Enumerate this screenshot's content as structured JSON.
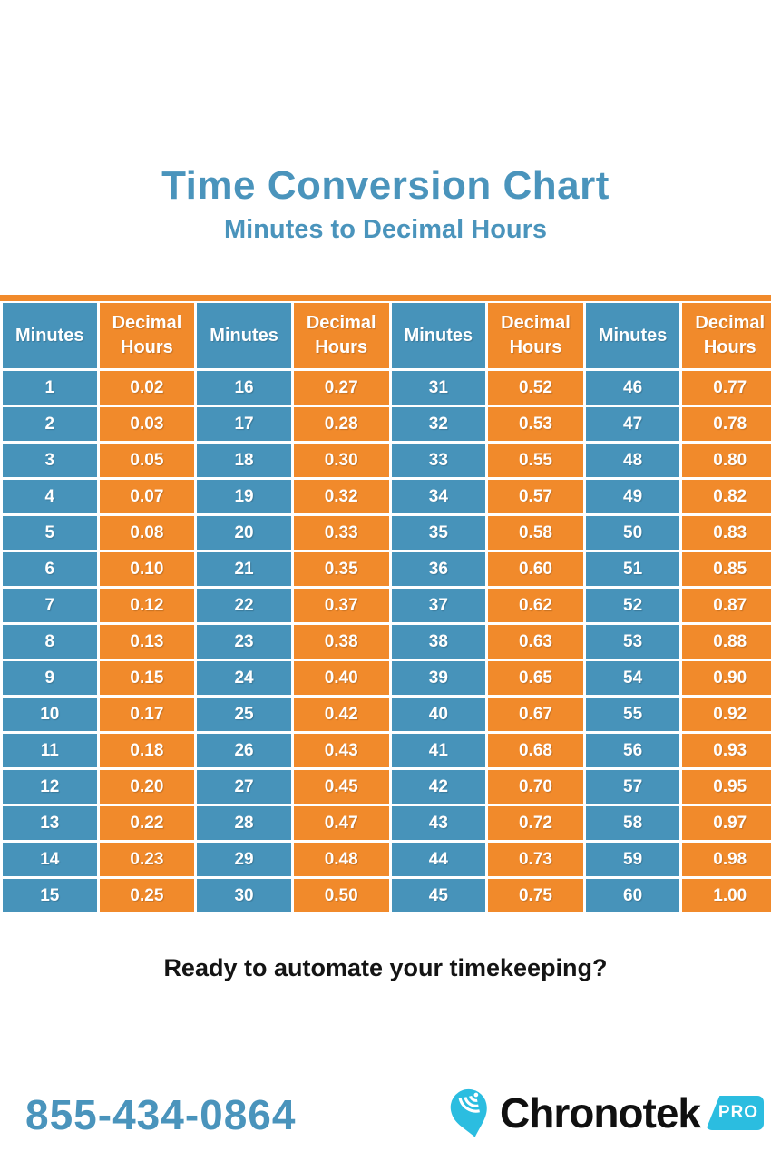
{
  "header": {
    "title": "Time Conversion Chart",
    "subtitle": "Minutes to Decimal Hours"
  },
  "table": {
    "column_headers": [
      "Minutes",
      "Decimal Hours"
    ],
    "rows": [
      [
        "1",
        "0.02",
        "16",
        "0.27",
        "31",
        "0.52",
        "46",
        "0.77"
      ],
      [
        "2",
        "0.03",
        "17",
        "0.28",
        "32",
        "0.53",
        "47",
        "0.78"
      ],
      [
        "3",
        "0.05",
        "18",
        "0.30",
        "33",
        "0.55",
        "48",
        "0.80"
      ],
      [
        "4",
        "0.07",
        "19",
        "0.32",
        "34",
        "0.57",
        "49",
        "0.82"
      ],
      [
        "5",
        "0.08",
        "20",
        "0.33",
        "35",
        "0.58",
        "50",
        "0.83"
      ],
      [
        "6",
        "0.10",
        "21",
        "0.35",
        "36",
        "0.60",
        "51",
        "0.85"
      ],
      [
        "7",
        "0.12",
        "22",
        "0.37",
        "37",
        "0.62",
        "52",
        "0.87"
      ],
      [
        "8",
        "0.13",
        "23",
        "0.38",
        "38",
        "0.63",
        "53",
        "0.88"
      ],
      [
        "9",
        "0.15",
        "24",
        "0.40",
        "39",
        "0.65",
        "54",
        "0.90"
      ],
      [
        "10",
        "0.17",
        "25",
        "0.42",
        "40",
        "0.67",
        "55",
        "0.92"
      ],
      [
        "11",
        "0.18",
        "26",
        "0.43",
        "41",
        "0.68",
        "56",
        "0.93"
      ],
      [
        "12",
        "0.20",
        "27",
        "0.45",
        "42",
        "0.70",
        "57",
        "0.95"
      ],
      [
        "13",
        "0.22",
        "28",
        "0.47",
        "43",
        "0.72",
        "58",
        "0.97"
      ],
      [
        "14",
        "0.23",
        "29",
        "0.48",
        "44",
        "0.73",
        "59",
        "0.98"
      ],
      [
        "15",
        "0.25",
        "30",
        "0.50",
        "45",
        "0.75",
        "60",
        "1.00"
      ]
    ]
  },
  "cta": {
    "text": "Ready to automate your timekeeping?"
  },
  "footer": {
    "phone": "855-434-0864",
    "logo_text": "Chronotek",
    "logo_badge": "PRO"
  },
  "colors": {
    "blue": "#4793BA",
    "orange": "#F18A2B",
    "title_blue": "#4A94BC",
    "logo_cyan": "#2BBDE0",
    "text_black": "#141414"
  },
  "chart_data": {
    "type": "table",
    "title": "Time Conversion Chart",
    "subtitle": "Minutes to Decimal Hours",
    "columns": [
      "Minutes",
      "Decimal Hours",
      "Minutes",
      "Decimal Hours",
      "Minutes",
      "Decimal Hours",
      "Minutes",
      "Decimal Hours"
    ],
    "minutes_to_decimal": {
      "1": "0.02",
      "2": "0.03",
      "3": "0.05",
      "4": "0.07",
      "5": "0.08",
      "6": "0.10",
      "7": "0.12",
      "8": "0.13",
      "9": "0.15",
      "10": "0.17",
      "11": "0.18",
      "12": "0.20",
      "13": "0.22",
      "14": "0.23",
      "15": "0.25",
      "16": "0.27",
      "17": "0.28",
      "18": "0.30",
      "19": "0.32",
      "20": "0.33",
      "21": "0.35",
      "22": "0.37",
      "23": "0.38",
      "24": "0.40",
      "25": "0.42",
      "26": "0.43",
      "27": "0.45",
      "28": "0.47",
      "29": "0.48",
      "30": "0.50",
      "31": "0.52",
      "32": "0.53",
      "33": "0.55",
      "34": "0.57",
      "35": "0.58",
      "36": "0.60",
      "37": "0.62",
      "38": "0.63",
      "39": "0.65",
      "40": "0.67",
      "41": "0.68",
      "42": "0.70",
      "43": "0.72",
      "44": "0.73",
      "45": "0.75",
      "46": "0.77",
      "47": "0.78",
      "48": "0.80",
      "49": "0.82",
      "50": "0.83",
      "51": "0.85",
      "52": "0.87",
      "53": "0.88",
      "54": "0.90",
      "55": "0.92",
      "56": "0.93",
      "57": "0.95",
      "58": "0.97",
      "59": "0.98",
      "60": "1.00"
    }
  }
}
